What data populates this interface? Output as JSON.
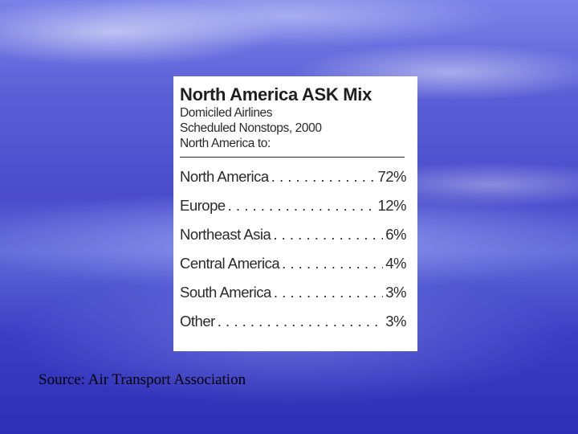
{
  "chart_data": {
    "type": "table",
    "title": "North America ASK Mix",
    "subtitle_lines": [
      "Domiciled Airlines",
      "Scheduled Nonstops, 2000",
      "North America to:"
    ],
    "rows": [
      {
        "destination": "North America",
        "value": "72%"
      },
      {
        "destination": "Europe",
        "value": "12%"
      },
      {
        "destination": "Northeast Asia",
        "value": "6%"
      },
      {
        "destination": "Central America",
        "value": "4%"
      },
      {
        "destination": "South America",
        "value": "3%"
      },
      {
        "destination": "Other",
        "value": "3%"
      }
    ],
    "values": [
      72,
      12,
      6,
      4,
      3,
      3
    ],
    "unit": "%"
  },
  "source": "Source: Air Transport Association"
}
